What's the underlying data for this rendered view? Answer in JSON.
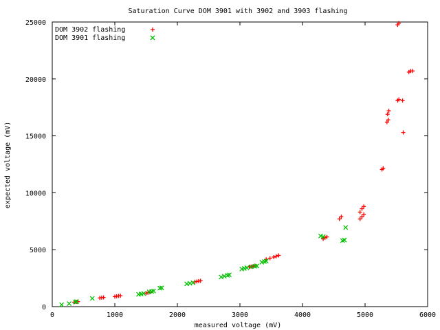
{
  "chart_data": {
    "type": "scatter",
    "title": "Saturation Curve DOM 3901 with 3902 and 3903 flashing",
    "xlabel": "measured voltage (mV)",
    "ylabel": "expected voltage (mV)",
    "xlim": [
      0,
      6000
    ],
    "ylim": [
      0,
      25000
    ],
    "xticks": [
      0,
      1000,
      2000,
      3000,
      4000,
      5000,
      6000
    ],
    "yticks": [
      0,
      5000,
      10000,
      15000,
      20000,
      25000
    ],
    "grid": false,
    "legend_position": "top-left",
    "series": [
      {
        "name": "DOM 3902 flashing",
        "marker": "plus",
        "color": "#ff0000",
        "points": [
          [
            350,
            390
          ],
          [
            380,
            420
          ],
          [
            410,
            440
          ],
          [
            760,
            760
          ],
          [
            790,
            790
          ],
          [
            820,
            810
          ],
          [
            1000,
            880
          ],
          [
            1030,
            910
          ],
          [
            1060,
            940
          ],
          [
            1090,
            960
          ],
          [
            1500,
            1180
          ],
          [
            1530,
            1220
          ],
          [
            1560,
            1260
          ],
          [
            2280,
            2180
          ],
          [
            2310,
            2210
          ],
          [
            2340,
            2240
          ],
          [
            2370,
            2270
          ],
          [
            3150,
            3480
          ],
          [
            3180,
            3520
          ],
          [
            3210,
            3560
          ],
          [
            3240,
            3600
          ],
          [
            3420,
            4150
          ],
          [
            3480,
            4250
          ],
          [
            3540,
            4350
          ],
          [
            3580,
            4420
          ],
          [
            3620,
            4500
          ],
          [
            4330,
            5950
          ],
          [
            4360,
            6050
          ],
          [
            4390,
            6120
          ],
          [
            4590,
            7700
          ],
          [
            4620,
            7900
          ],
          [
            4920,
            7700
          ],
          [
            4950,
            7900
          ],
          [
            4980,
            8100
          ],
          [
            4920,
            8300
          ],
          [
            4950,
            8600
          ],
          [
            4980,
            8800
          ],
          [
            5270,
            12050
          ],
          [
            5290,
            12150
          ],
          [
            5350,
            16200
          ],
          [
            5370,
            16400
          ],
          [
            5360,
            16900
          ],
          [
            5380,
            17200
          ],
          [
            5520,
            18100
          ],
          [
            5540,
            18200
          ],
          [
            5600,
            18100
          ],
          [
            5610,
            15300
          ],
          [
            5700,
            20600
          ],
          [
            5730,
            20700
          ],
          [
            5760,
            20700
          ],
          [
            5520,
            24750
          ],
          [
            5540,
            24900
          ]
        ]
      },
      {
        "name": "DOM 3901 flashing",
        "marker": "cross",
        "color": "#00c000",
        "points": [
          [
            150,
            170
          ],
          [
            270,
            270
          ],
          [
            370,
            420
          ],
          [
            390,
            440
          ],
          [
            640,
            720
          ],
          [
            1380,
            1080
          ],
          [
            1420,
            1110
          ],
          [
            1460,
            1150
          ],
          [
            1550,
            1300
          ],
          [
            1590,
            1340
          ],
          [
            1620,
            1370
          ],
          [
            1720,
            1620
          ],
          [
            1750,
            1650
          ],
          [
            2150,
            2000
          ],
          [
            2200,
            2050
          ],
          [
            2250,
            2100
          ],
          [
            2700,
            2600
          ],
          [
            2750,
            2680
          ],
          [
            2800,
            2750
          ],
          [
            2830,
            2790
          ],
          [
            3030,
            3300
          ],
          [
            3070,
            3360
          ],
          [
            3110,
            3420
          ],
          [
            3180,
            3500
          ],
          [
            3240,
            3550
          ],
          [
            3270,
            3570
          ],
          [
            3350,
            3900
          ],
          [
            3390,
            3960
          ],
          [
            3420,
            4000
          ],
          [
            4290,
            6200
          ],
          [
            4330,
            6150
          ],
          [
            4640,
            5800
          ],
          [
            4670,
            5850
          ],
          [
            4690,
            6950
          ]
        ]
      }
    ]
  }
}
